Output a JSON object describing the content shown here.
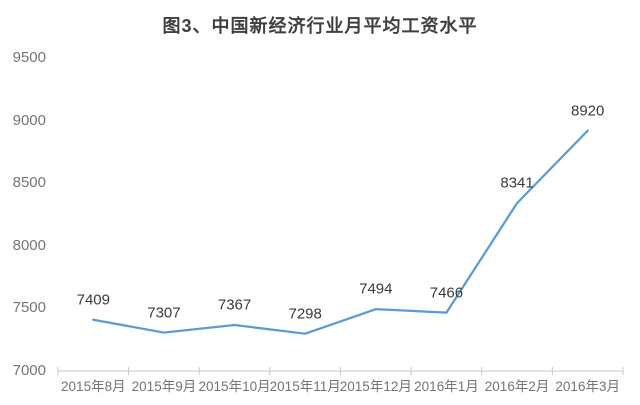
{
  "chart_data": {
    "type": "line",
    "title": "图3、中国新经济行业月平均工资水平",
    "categories": [
      "2015年8月",
      "2015年9月",
      "2015年10月",
      "2015年11月",
      "2015年12月",
      "2016年1月",
      "2016年2月",
      "2016年3月"
    ],
    "values": [
      7409,
      7307,
      7367,
      7298,
      7494,
      7466,
      8341,
      8920
    ],
    "data_labels_shown": [
      7409,
      7307,
      7367,
      7298,
      7494,
      7466,
      8341,
      8920
    ],
    "xlabel": "",
    "ylabel": "",
    "ylim": [
      7000,
      9500
    ],
    "yticks": [
      7000,
      7500,
      8000,
      8500,
      9000,
      9500
    ],
    "grid": false,
    "legend": "none",
    "line_color": "#5B9BD5",
    "axis_color": "#C8C8C8",
    "title_color": "#404040",
    "tick_label_color": "#757575",
    "data_label_color": "#3B3B3B"
  }
}
